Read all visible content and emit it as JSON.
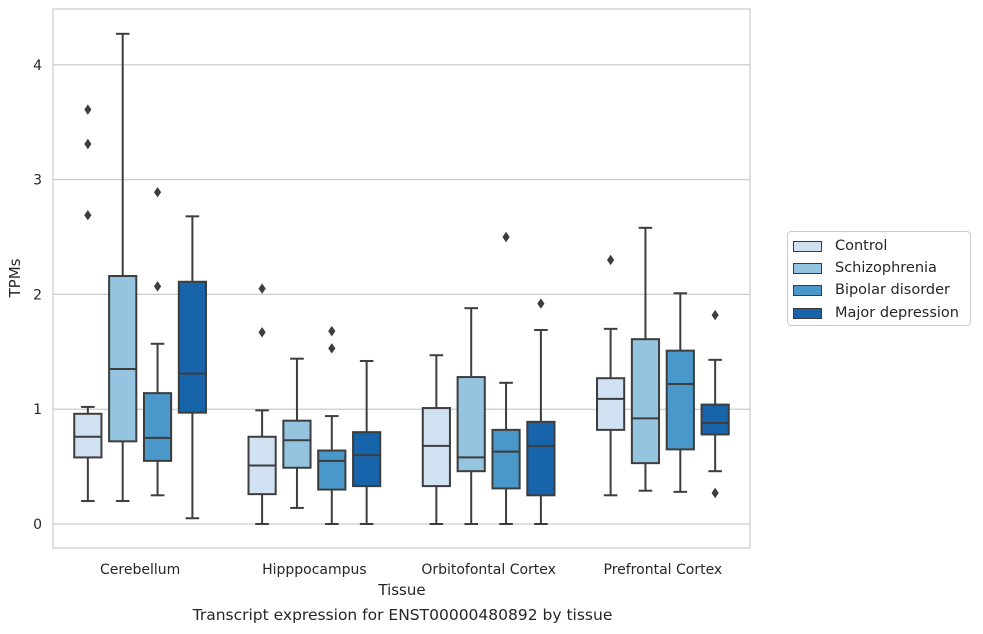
{
  "caption": "Transcript expression for ENST00000480892 by tissue",
  "chart_data": {
    "type": "boxplot",
    "title": "",
    "xlabel": "Tissue",
    "ylabel": "TPMs",
    "ylim": [
      -0.2,
      4.5
    ],
    "yticks": [
      0,
      1,
      2,
      3,
      4
    ],
    "grid": "horizontal",
    "legend_position": "right",
    "categories": [
      "Cerebellum",
      "Hipppocampus",
      "Orbitofontal Cortex",
      "Prefrontal Cortex"
    ],
    "series": [
      {
        "name": "Control",
        "color": "#d0e1f2",
        "boxes": [
          {
            "whisker_low": 0.2,
            "q1": 0.58,
            "median": 0.76,
            "q3": 0.96,
            "whisker_high": 1.02,
            "outliers": [
              2.69,
              3.31,
              3.61
            ]
          },
          {
            "whisker_low": 0.0,
            "q1": 0.26,
            "median": 0.51,
            "q3": 0.76,
            "whisker_high": 0.99,
            "outliers": [
              1.67,
              2.05
            ]
          },
          {
            "whisker_low": 0.0,
            "q1": 0.33,
            "median": 0.68,
            "q3": 1.01,
            "whisker_high": 1.47,
            "outliers": []
          },
          {
            "whisker_low": 0.25,
            "q1": 0.82,
            "median": 1.09,
            "q3": 1.27,
            "whisker_high": 1.7,
            "outliers": [
              2.3
            ]
          }
        ]
      },
      {
        "name": "Schizophrenia",
        "color": "#94c4df",
        "boxes": [
          {
            "whisker_low": 0.2,
            "q1": 0.72,
            "median": 1.35,
            "q3": 2.16,
            "whisker_high": 4.27,
            "outliers": []
          },
          {
            "whisker_low": 0.14,
            "q1": 0.49,
            "median": 0.73,
            "q3": 0.9,
            "whisker_high": 1.44,
            "outliers": []
          },
          {
            "whisker_low": 0.0,
            "q1": 0.46,
            "median": 0.58,
            "q3": 1.28,
            "whisker_high": 1.88,
            "outliers": []
          },
          {
            "whisker_low": 0.29,
            "q1": 0.53,
            "median": 0.92,
            "q3": 1.61,
            "whisker_high": 2.58,
            "outliers": []
          }
        ]
      },
      {
        "name": "Bipolar disorder",
        "color": "#4a98c9",
        "boxes": [
          {
            "whisker_low": 0.25,
            "q1": 0.55,
            "median": 0.75,
            "q3": 1.14,
            "whisker_high": 1.57,
            "outliers": [
              2.07,
              2.89
            ]
          },
          {
            "whisker_low": 0.0,
            "q1": 0.3,
            "median": 0.55,
            "q3": 0.64,
            "whisker_high": 0.94,
            "outliers": [
              1.53,
              1.68
            ]
          },
          {
            "whisker_low": 0.0,
            "q1": 0.31,
            "median": 0.63,
            "q3": 0.82,
            "whisker_high": 1.23,
            "outliers": [
              2.5
            ]
          },
          {
            "whisker_low": 0.28,
            "q1": 0.65,
            "median": 1.22,
            "q3": 1.51,
            "whisker_high": 2.01,
            "outliers": []
          }
        ]
      },
      {
        "name": "Major depression",
        "color": "#1764ab",
        "boxes": [
          {
            "whisker_low": 0.05,
            "q1": 0.97,
            "median": 1.31,
            "q3": 2.11,
            "whisker_high": 2.68,
            "outliers": []
          },
          {
            "whisker_low": 0.0,
            "q1": 0.33,
            "median": 0.6,
            "q3": 0.8,
            "whisker_high": 1.42,
            "outliers": []
          },
          {
            "whisker_low": 0.0,
            "q1": 0.25,
            "median": 0.68,
            "q3": 0.89,
            "whisker_high": 1.69,
            "outliers": [
              1.92
            ]
          },
          {
            "whisker_low": 0.46,
            "q1": 0.78,
            "median": 0.88,
            "q3": 1.04,
            "whisker_high": 1.43,
            "outliers": [
              0.27,
              1.82
            ]
          }
        ]
      }
    ]
  }
}
